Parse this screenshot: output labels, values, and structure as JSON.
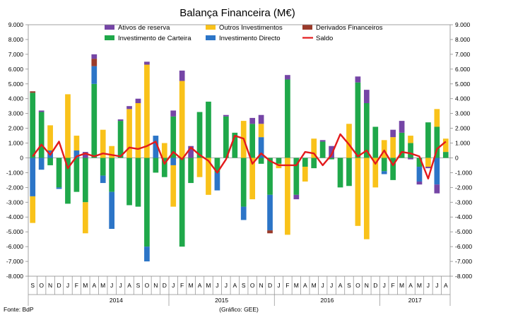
{
  "chart_data": {
    "type": "bar",
    "stacked": true,
    "title": "Balança Financeira (M€)",
    "ylim": [
      -8000,
      9000
    ],
    "ytick_step": 1000,
    "ytick_labels": [
      "9.000",
      "8.000",
      "7.000",
      "6.000",
      "5.000",
      "4.000",
      "3.000",
      "2.000",
      "1.000",
      "0",
      "-1.000",
      "-2.000",
      "-3.000",
      "-4.000",
      "-5.000",
      "-6.000",
      "-7.000",
      "-8.000"
    ],
    "grid": false,
    "legend_position": "top",
    "months": [
      "S",
      "O",
      "N",
      "D",
      "J",
      "F",
      "M",
      "A",
      "M",
      "J",
      "J",
      "A",
      "S",
      "O",
      "N",
      "D",
      "J",
      "F",
      "M",
      "A",
      "M",
      "J",
      "J",
      "A",
      "S",
      "O",
      "N",
      "D",
      "J",
      "F",
      "M",
      "A",
      "M",
      "J",
      "J",
      "A",
      "S",
      "O",
      "N",
      "D",
      "J",
      "F",
      "M",
      "A",
      "M",
      "J",
      "J",
      "A"
    ],
    "years": [
      {
        "label": "2014",
        "start": 4,
        "end": 15
      },
      {
        "label": "2015",
        "start": 16,
        "end": 27
      },
      {
        "label": "2016",
        "start": 28,
        "end": 39
      },
      {
        "label": "2017",
        "start": 40,
        "end": 47
      }
    ],
    "series": [
      {
        "name": "Investimento de Carteira",
        "color": "#1fa84a",
        "values": [
          4400,
          3100,
          -500,
          -2000,
          -3100,
          -2300,
          -3000,
          5000,
          -1200,
          -2300,
          2500,
          -3200,
          -3300,
          -6000,
          -1000,
          -1300,
          2800,
          -6000,
          -1700,
          3100,
          3800,
          -1000,
          2800,
          1700,
          -3300,
          2300,
          -400,
          -2500,
          -400,
          5300,
          -2500,
          -600,
          -700,
          1100,
          -100,
          -2000,
          -1900,
          5100,
          3700,
          2100,
          -900,
          -1500,
          1700,
          1000,
          -600,
          2400,
          2100,
          400
        ],
        "note": "order of stacking (bottom-up): Investimento de Carteira, Investimento Directo, Outros Investimentos, Derivados Financeiros, Ativos de reserva"
      },
      {
        "name": "Investimento Directo",
        "color": "#2c75c7",
        "values": [
          -2600,
          -800,
          500,
          -100,
          0,
          500,
          0,
          1200,
          -500,
          -2500,
          0,
          0,
          0,
          -1000,
          1500,
          0,
          -500,
          0,
          0,
          0,
          0,
          -1200,
          0,
          0,
          -900,
          0,
          1400,
          -2400,
          0,
          0,
          0,
          0,
          0,
          0,
          0,
          0,
          0,
          0,
          0,
          0,
          -200,
          0,
          0,
          0,
          -1000,
          0,
          -1800,
          0
        ],
        "note": "estimated"
      },
      {
        "name": "Outros Investimentos",
        "color": "#f9c21a",
        "values": [
          -1800,
          0,
          1700,
          0,
          4300,
          1000,
          -2100,
          0,
          1900,
          800,
          0,
          3300,
          3700,
          6300,
          0,
          1000,
          -2800,
          5200,
          0,
          -1300,
          -2500,
          0,
          0,
          0,
          2500,
          -2800,
          900,
          0,
          -300,
          -5200,
          0,
          -1000,
          1300,
          0,
          0,
          0,
          2300,
          -4600,
          -5500,
          -2000,
          1200,
          1400,
          0,
          500,
          0,
          -600,
          1200,
          900
        ],
        "note": "estimated"
      },
      {
        "name": "Derivados Financeiros",
        "color": "#9a3a2a",
        "values": [
          100,
          0,
          0,
          0,
          0,
          0,
          0,
          500,
          0,
          0,
          0,
          0,
          0,
          0,
          0,
          0,
          0,
          0,
          0,
          0,
          0,
          0,
          0,
          0,
          0,
          0,
          0,
          -200,
          0,
          0,
          0,
          0,
          0,
          0,
          0,
          0,
          0,
          0,
          0,
          0,
          0,
          0,
          0,
          0,
          0,
          0,
          0,
          0
        ],
        "note": "estimated"
      },
      {
        "name": "Ativos de reserva",
        "color": "#7545a6",
        "values": [
          0,
          100,
          0,
          0,
          0,
          0,
          400,
          300,
          0,
          0,
          100,
          200,
          300,
          200,
          0,
          0,
          400,
          700,
          800,
          0,
          0,
          0,
          100,
          0,
          0,
          400,
          600,
          0,
          0,
          300,
          -300,
          0,
          0,
          100,
          800,
          0,
          0,
          400,
          900,
          0,
          0,
          500,
          800,
          -100,
          -200,
          -100,
          -600,
          0
        ],
        "note": "estimated"
      }
    ],
    "line": {
      "name": "Saldo",
      "color": "#e31a1c",
      "values": [
        100,
        900,
        200,
        1100,
        -700,
        100,
        300,
        100,
        300,
        200,
        100,
        700,
        600,
        800,
        1100,
        -400,
        400,
        -100,
        700,
        200,
        -200,
        -1000,
        -100,
        1500,
        1300,
        -400,
        300,
        -200,
        -500,
        -500,
        -500,
        400,
        300,
        -500,
        200,
        1600,
        900,
        100,
        500,
        -400,
        500,
        -500,
        400,
        300,
        100,
        -1400,
        600,
        1100
      ]
    }
  },
  "source_left": "Fonte: BdP",
  "source_center": "(Gráfico: GEE)"
}
